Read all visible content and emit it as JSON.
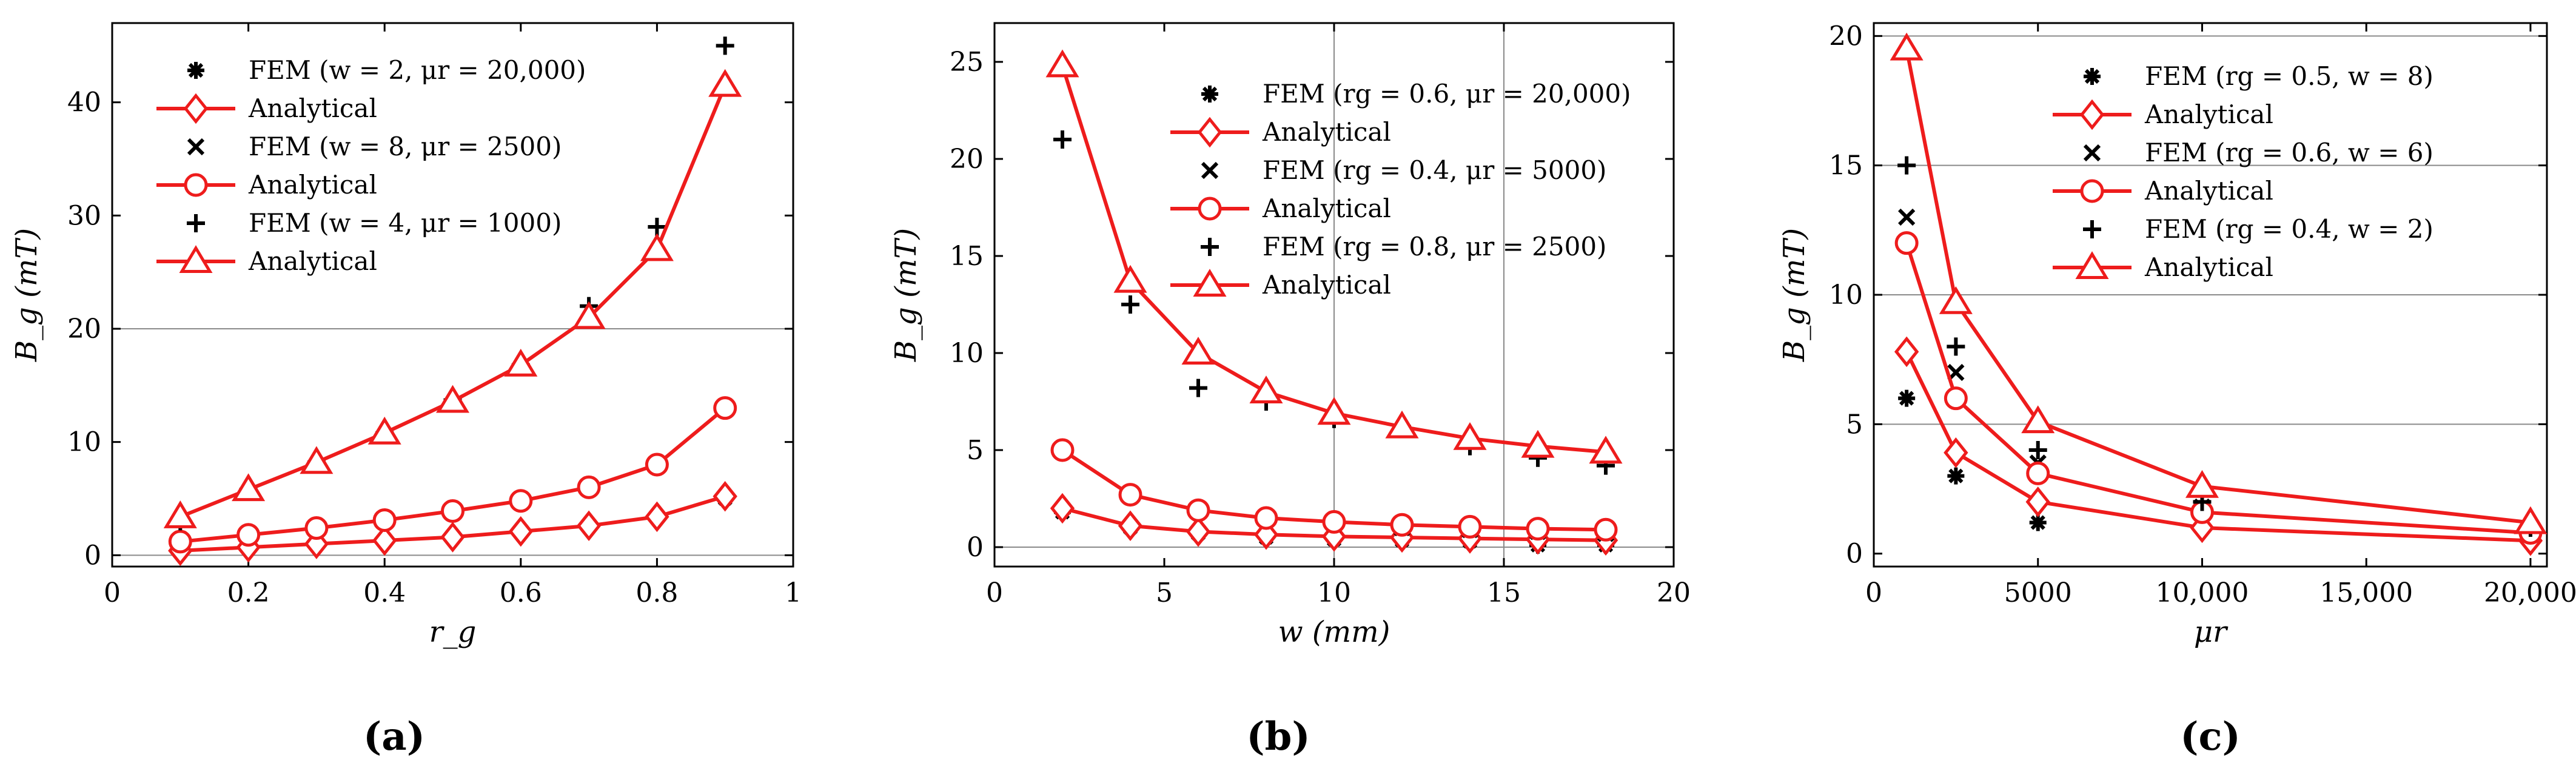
{
  "figure": {
    "panel_labels": [
      "(a)",
      "(b)",
      "(c)"
    ]
  },
  "colors": {
    "analytical": "#ee1c1c",
    "fem": "#000000",
    "axis": "#000000",
    "gridline": "#8a8a8a"
  },
  "chart_data": [
    {
      "type": "line",
      "panel": "(a)",
      "title": "",
      "xlabel": "r_g",
      "ylabel": "B_g (mT)",
      "xlim": [
        0,
        1
      ],
      "ylim": [
        -1,
        47
      ],
      "xticks": [
        0,
        0.2,
        0.4,
        0.6,
        0.8,
        1
      ],
      "xtick_labels": [
        "0",
        "0.2",
        "0.4",
        "0.6",
        "0.8",
        "1"
      ],
      "yticks": [
        0,
        10,
        20,
        30,
        40
      ],
      "ytick_labels": [
        "0",
        "10",
        "20",
        "30",
        "40"
      ],
      "hlines": [
        20,
        0
      ],
      "vlines": [],
      "legend": "top-left",
      "x": [
        0.1,
        0.2,
        0.3,
        0.4,
        0.5,
        0.6,
        0.7,
        0.8,
        0.9
      ],
      "series": [
        {
          "name": "FEM (w = 2, μr = 20,000)",
          "kind": "fem",
          "marker": "asterisk",
          "values": [
            0.6,
            0.8,
            1.0,
            1.3,
            1.7,
            2.2,
            2.7,
            3.5,
            5.0
          ]
        },
        {
          "name": "Analytical",
          "kind": "analytical",
          "marker": "diamond",
          "values": [
            0.4,
            0.7,
            1.0,
            1.3,
            1.6,
            2.1,
            2.6,
            3.4,
            5.2
          ]
        },
        {
          "name": "FEM (w = 8, μr = 2500)",
          "kind": "fem",
          "marker": "x",
          "values": [
            1.2,
            1.8,
            2.4,
            3.1,
            3.9,
            4.8,
            6.0,
            8.0,
            13.0
          ]
        },
        {
          "name": "Analytical",
          "kind": "analytical",
          "marker": "circle",
          "values": [
            1.2,
            1.8,
            2.4,
            3.1,
            3.9,
            4.8,
            6.0,
            8.0,
            13.0
          ]
        },
        {
          "name": "FEM (w = 4, μr = 1000)",
          "kind": "fem",
          "marker": "plus",
          "values": [
            3.0,
            5.8,
            8.2,
            10.8,
            13.7,
            16.8,
            22.0,
            29.0,
            45.0
          ]
        },
        {
          "name": "Analytical",
          "kind": "analytical",
          "marker": "triangle",
          "values": [
            3.4,
            5.8,
            8.2,
            10.8,
            13.6,
            16.8,
            21.0,
            27.0,
            41.5
          ]
        }
      ]
    },
    {
      "type": "line",
      "panel": "(b)",
      "title": "",
      "xlabel": "w (mm)",
      "ylabel": "B_g (mT)",
      "xlim": [
        0,
        20
      ],
      "ylim": [
        -1,
        27
      ],
      "xticks": [
        0,
        5,
        10,
        15,
        20
      ],
      "xtick_labels": [
        "0",
        "5",
        "10",
        "15",
        "20"
      ],
      "yticks": [
        0,
        5,
        10,
        15,
        20,
        25
      ],
      "ytick_labels": [
        "0",
        "5",
        "10",
        "15",
        "20",
        "25"
      ],
      "hlines": [
        0
      ],
      "vlines": [
        10,
        15
      ],
      "legend": "top-right",
      "x": [
        2,
        4,
        6,
        8,
        10,
        12,
        14,
        16,
        18
      ],
      "series": [
        {
          "name": "FEM (rg = 0.6, μr = 20,000)",
          "kind": "fem",
          "marker": "asterisk",
          "values": [
            1.8,
            1.0,
            0.7,
            0.5,
            0.4,
            0.35,
            0.3,
            0.1,
            0.1
          ]
        },
        {
          "name": "Analytical",
          "kind": "analytical",
          "marker": "diamond",
          "values": [
            2.0,
            1.1,
            0.8,
            0.65,
            0.55,
            0.5,
            0.45,
            0.4,
            0.35
          ]
        },
        {
          "name": "FEM (rg = 0.4, μr = 5000)",
          "kind": "fem",
          "marker": "x",
          "values": [
            5.0,
            2.7,
            1.9,
            1.5,
            1.2,
            1.0,
            0.9,
            0.8,
            0.7
          ]
        },
        {
          "name": "Analytical",
          "kind": "analytical",
          "marker": "circle",
          "values": [
            5.0,
            2.7,
            1.9,
            1.5,
            1.3,
            1.15,
            1.05,
            0.95,
            0.9
          ]
        },
        {
          "name": "FEM (rg = 0.8, μr = 2500)",
          "kind": "fem",
          "marker": "plus",
          "values": [
            21.0,
            12.5,
            8.2,
            7.5,
            6.6,
            6.2,
            5.2,
            4.6,
            4.2
          ]
        },
        {
          "name": "Analytical",
          "kind": "analytical",
          "marker": "triangle",
          "values": [
            24.8,
            13.7,
            10.0,
            8.0,
            6.9,
            6.2,
            5.6,
            5.2,
            4.9
          ]
        }
      ]
    },
    {
      "type": "line",
      "panel": "(c)",
      "title": "",
      "xlabel": "μr",
      "ylabel": "B_g (mT)",
      "xlim": [
        0,
        20500
      ],
      "ylim": [
        -0.5,
        20.5
      ],
      "xticks": [
        0,
        5000,
        10000,
        15000,
        20000
      ],
      "xtick_labels": [
        "0",
        "5000",
        "10,000",
        "15,000",
        "20,000"
      ],
      "yticks": [
        0,
        5,
        10,
        15,
        20
      ],
      "ytick_labels": [
        "0",
        "5",
        "10",
        "15",
        "20"
      ],
      "hlines": [
        5,
        10,
        15,
        20
      ],
      "vlines": [],
      "legend": "top-right",
      "x": [
        1000,
        2500,
        5000,
        10000,
        20000
      ],
      "series": [
        {
          "name": "FEM (rg = 0.5, w = 8)",
          "kind": "fem",
          "marker": "asterisk",
          "values": [
            6.0,
            3.0,
            1.2,
            1.0,
            0.5
          ]
        },
        {
          "name": "Analytical",
          "kind": "analytical",
          "marker": "diamond",
          "values": [
            7.8,
            3.9,
            2.0,
            1.0,
            0.5
          ]
        },
        {
          "name": "FEM (rg = 0.6, w = 6)",
          "kind": "fem",
          "marker": "x",
          "values": [
            13.0,
            7.0,
            3.5,
            1.8,
            0.8
          ]
        },
        {
          "name": "Analytical",
          "kind": "analytical",
          "marker": "circle",
          "values": [
            12.0,
            6.0,
            3.1,
            1.6,
            0.8
          ]
        },
        {
          "name": "FEM (rg = 0.4, w = 2)",
          "kind": "fem",
          "marker": "plus",
          "values": [
            15.0,
            8.0,
            4.0,
            2.0,
            1.0
          ]
        },
        {
          "name": "Analytical",
          "kind": "analytical",
          "marker": "triangle",
          "values": [
            19.5,
            9.7,
            5.1,
            2.6,
            1.2
          ]
        }
      ]
    }
  ]
}
